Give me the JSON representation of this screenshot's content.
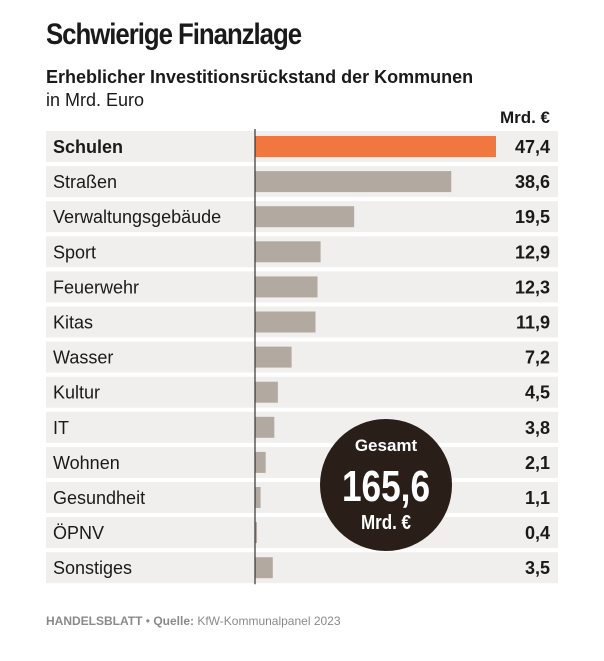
{
  "title": "Schwierige Finanzlage",
  "subtitle": "Erheblicher Investitionsrückstand der Kommunen",
  "unit_label": "in Mrd. Euro",
  "column_unit": "Mrd. €",
  "total": {
    "label": "Gesamt",
    "value": "165,6",
    "unit": "Mrd. €"
  },
  "source": {
    "publisher": "HANDELSBLATT",
    "separator": " • ",
    "label": "Quelle:",
    "text": " KfW-Kommunalpanel 2023"
  },
  "colors": {
    "highlight": "#f07840",
    "bar": "#b2aaa1",
    "row_shade": "#f1efed",
    "circle": "#2a1e18",
    "axis": "#333333"
  },
  "chart_data": {
    "type": "bar",
    "orientation": "horizontal",
    "title": "Schwierige Finanzlage",
    "subtitle": "Erheblicher Investitionsrückstand der Kommunen",
    "unit": "in Mrd. Euro",
    "categories": [
      "Schulen",
      "Straßen",
      "Verwaltungsgebäude",
      "Sport",
      "Feuerwehr",
      "Kitas",
      "Wasser",
      "Kultur",
      "IT",
      "Wohnen",
      "Gesundheit",
      "ÖPNV",
      "Sonstiges"
    ],
    "values": [
      47.4,
      38.6,
      19.5,
      12.9,
      12.3,
      11.9,
      7.2,
      4.5,
      3.8,
      2.1,
      1.1,
      0.4,
      3.5
    ],
    "value_labels": [
      "47,4",
      "38,6",
      "19,5",
      "12,9",
      "12,3",
      "11,9",
      "7,2",
      "4,5",
      "3,8",
      "2,1",
      "1,1",
      "0,4",
      "3,5"
    ],
    "highlight_category": "Schulen",
    "xlim": [
      0,
      47.4
    ],
    "grid": false
  }
}
